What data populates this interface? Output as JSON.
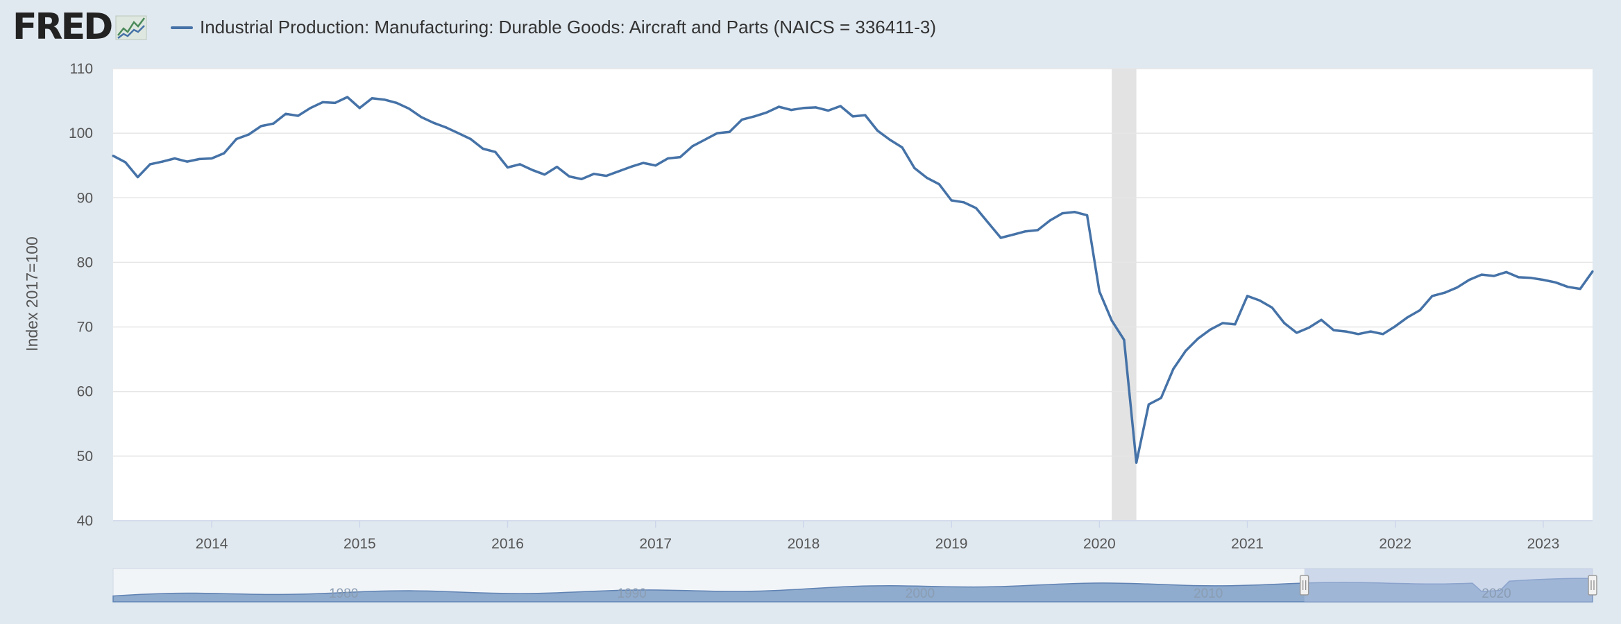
{
  "logo": {
    "text": "FRED"
  },
  "colors": {
    "series": "#4572a7",
    "recession": "#e3e3e3",
    "background": "#e1e9f0",
    "navigator_fill": "#7e9ec6",
    "navigator_selection": "#aebfe0"
  },
  "chart_data": {
    "type": "line",
    "series": [
      {
        "name": "Industrial Production: Manufacturing: Durable Goods: Aircraft and Parts (NAICS = 336411-3)",
        "start": "2013-05",
        "frequency": "monthly",
        "values": [
          96.5,
          95.5,
          93.2,
          95.2,
          95.6,
          96.1,
          95.6,
          96.0,
          96.1,
          96.9,
          99.1,
          99.8,
          101.1,
          101.5,
          103.0,
          102.7,
          103.9,
          104.8,
          104.7,
          105.6,
          103.9,
          105.4,
          105.2,
          104.7,
          103.8,
          102.5,
          101.6,
          100.9,
          100.0,
          99.1,
          97.6,
          97.1,
          94.7,
          95.2,
          94.3,
          93.6,
          94.8,
          93.3,
          92.9,
          93.7,
          93.4,
          94.1,
          94.8,
          95.4,
          95.0,
          96.1,
          96.3,
          98.0,
          99.0,
          100.0,
          100.2,
          102.1,
          102.6,
          103.2,
          104.1,
          103.6,
          103.9,
          104.0,
          103.5,
          104.2,
          102.6,
          102.8,
          100.4,
          99.0,
          97.8,
          94.6,
          93.1,
          92.1,
          89.6,
          89.3,
          88.4,
          86.1,
          83.8,
          84.3,
          84.8,
          85.0,
          86.5,
          87.6,
          87.8,
          87.3,
          75.5,
          71.0,
          68.0,
          49.0,
          58.0,
          59.0,
          63.5,
          66.3,
          68.2,
          69.6,
          70.6,
          70.4,
          74.8,
          74.1,
          73.0,
          70.6,
          69.1,
          69.9,
          71.1,
          69.5,
          69.3,
          68.9,
          69.3,
          68.9,
          70.1,
          71.5,
          72.6,
          74.8,
          75.3,
          76.1,
          77.3,
          78.1,
          77.9,
          78.5,
          77.7,
          77.6,
          77.3,
          76.9,
          76.2,
          75.9,
          78.6
        ]
      }
    ],
    "recessions": [
      {
        "start": "2020-02",
        "end": "2020-04"
      }
    ],
    "ylabel": "Index 2017=100",
    "ylim": [
      40,
      110
    ],
    "yticks": [
      40,
      50,
      60,
      70,
      80,
      90,
      100,
      110
    ],
    "xlim": [
      "2013-05",
      "2023-05"
    ],
    "xticks": [
      "2014",
      "2015",
      "2016",
      "2017",
      "2018",
      "2019",
      "2020",
      "2021",
      "2022",
      "2023"
    ],
    "grid": true,
    "legend": "top-left",
    "navigator": {
      "labels": [
        "1980",
        "1990",
        "2000",
        "2010",
        "2020"
      ],
      "range": [
        "1972-01",
        "2023-05"
      ],
      "selected": [
        "2013-05",
        "2023-05"
      ]
    }
  }
}
